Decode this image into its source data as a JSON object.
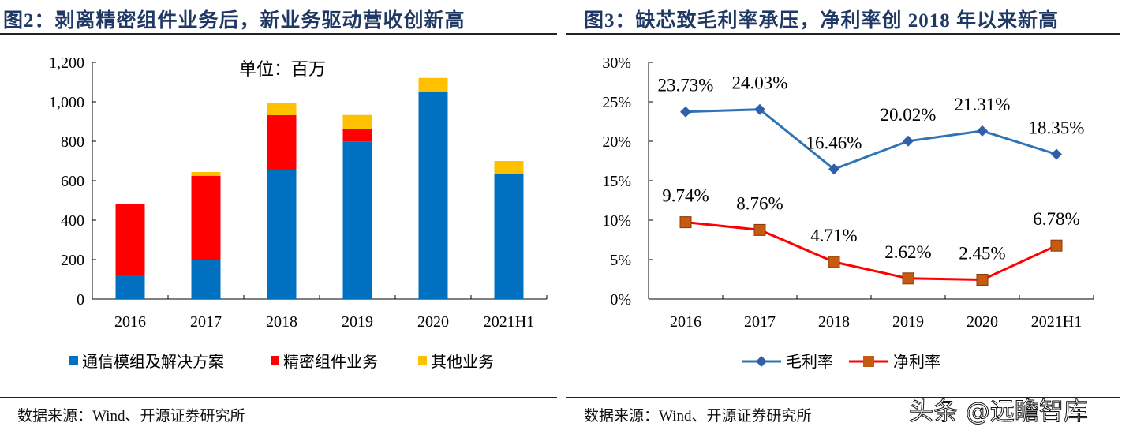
{
  "chart_data": [
    {
      "type": "bar",
      "stacked": true,
      "title": "图2：剥离精密组件业务后，新业务驱动营收创新高",
      "unit_label": "单位：百万",
      "categories": [
        "2016",
        "2017",
        "2018",
        "2019",
        "2020",
        "2021H1"
      ],
      "series": [
        {
          "name": "通信模组及解决方案",
          "color": "#0070C0",
          "values": [
            124,
            199,
            655,
            799,
            1053,
            637
          ]
        },
        {
          "name": "精密组件业务",
          "color": "#FF0000",
          "values": [
            356,
            426,
            277,
            62,
            0,
            0
          ]
        },
        {
          "name": "其他业务",
          "color": "#FFC000",
          "values": [
            2,
            19,
            60,
            72,
            68,
            63
          ]
        }
      ],
      "ylim": [
        0,
        1200
      ],
      "yticks": [
        "0",
        "200",
        "400",
        "600",
        "800",
        "1,000",
        "1,200"
      ],
      "legend": "bottom",
      "grid": false,
      "source": "数据来源：Wind、开源证券研究所"
    },
    {
      "type": "line",
      "title": "图3：缺芯致毛利率承压，净利率创 2018 年以来新高",
      "categories": [
        "2016",
        "2017",
        "2018",
        "2019",
        "2020",
        "2021H1"
      ],
      "series": [
        {
          "name": "毛利率",
          "color": "#2E75B6",
          "marker": "diamond",
          "values": [
            23.73,
            24.03,
            16.46,
            20.02,
            21.31,
            18.35
          ],
          "labels": [
            "23.73%",
            "24.03%",
            "16.46%",
            "20.02%",
            "21.31%",
            "18.35%"
          ]
        },
        {
          "name": "净利率",
          "color": "#FF0000",
          "marker_color": "#C55A11",
          "marker": "square",
          "values": [
            9.74,
            8.76,
            4.71,
            2.62,
            2.45,
            6.78
          ],
          "labels": [
            "9.74%",
            "8.76%",
            "4.71%",
            "2.62%",
            "2.45%",
            "6.78%"
          ]
        }
      ],
      "ylim": [
        0,
        30
      ],
      "yticks": [
        "0%",
        "5%",
        "10%",
        "15%",
        "20%",
        "25%",
        "30%"
      ],
      "legend": "bottom",
      "grid": false,
      "source": "数据来源：Wind、开源证券研究所"
    }
  ],
  "watermark": "头条 @远瞻智库"
}
